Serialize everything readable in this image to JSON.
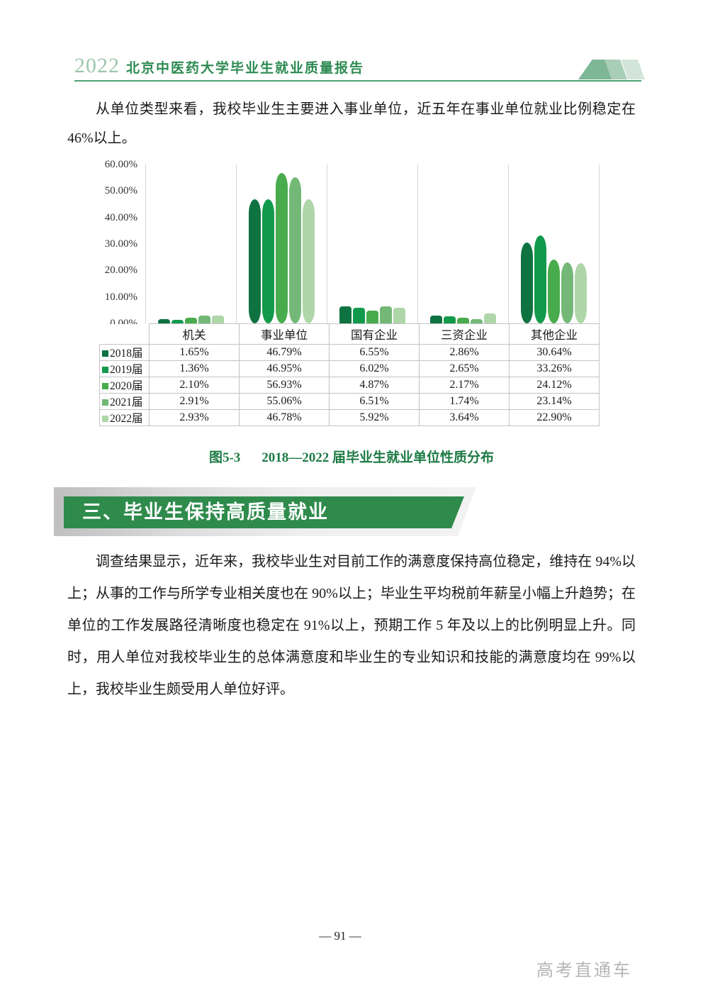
{
  "header": {
    "year": "2022",
    "title": "北京中医药大学毕业生就业质量报告"
  },
  "intro_paragraph": "从单位类型来看，我校毕业生主要进入事业单位，近五年在事业单位就业比例稳定在 46%以上。",
  "chart_data": {
    "type": "bar",
    "title": "图5-3 2018—2022 届毕业生就业单位性质分布",
    "categories": [
      "机关",
      "事业单位",
      "国有企业",
      "三资企业",
      "其他企业"
    ],
    "series": [
      {
        "name": "2018届",
        "color": "#0f7241",
        "values": [
          1.65,
          46.79,
          6.55,
          2.86,
          30.64
        ]
      },
      {
        "name": "2019届",
        "color": "#129a4c",
        "values": [
          1.36,
          46.95,
          6.02,
          2.65,
          33.26
        ]
      },
      {
        "name": "2020届",
        "color": "#48ab4c",
        "values": [
          2.1,
          56.93,
          4.87,
          2.17,
          24.12
        ]
      },
      {
        "name": "2021届",
        "color": "#74b877",
        "values": [
          2.91,
          55.06,
          6.51,
          1.74,
          23.14
        ]
      },
      {
        "name": "2022届",
        "color": "#aed6a8",
        "values": [
          2.93,
          46.78,
          5.92,
          3.64,
          22.9
        ]
      }
    ],
    "ylim": [
      0,
      60
    ],
    "yticks": [
      "60.00%",
      "50.00%",
      "40.00%",
      "30.00%",
      "20.00%",
      "10.00%",
      "0.00%"
    ],
    "value_format": "percent_2dp",
    "legend_position": "table-rows-below-chart",
    "grid": "vertical-category-separators"
  },
  "caption": {
    "label": "图5-3",
    "text": "2018—2022 届毕业生就业单位性质分布"
  },
  "section_banner": {
    "title": "三、毕业生保持高质量就业",
    "color": "#2f8b4c"
  },
  "body_paragraph": "调查结果显示，近年来，我校毕业生对目前工作的满意度保持高位稳定，维持在 94%以上；从事的工作与所学专业相关度也在 90%以上；毕业生平均税前年薪呈小幅上升趋势；在单位的工作发展路径清晰度也稳定在 91%以上，预期工作 5 年及以上的比例明显上升。同时，用人单位对我校毕业生的总体满意度和毕业生的专业知识和技能的满意度均在 99%以上，我校毕业生颇受用人单位好评。",
  "footer": {
    "page_number": "— 91 —",
    "watermark": "高考直通车"
  }
}
